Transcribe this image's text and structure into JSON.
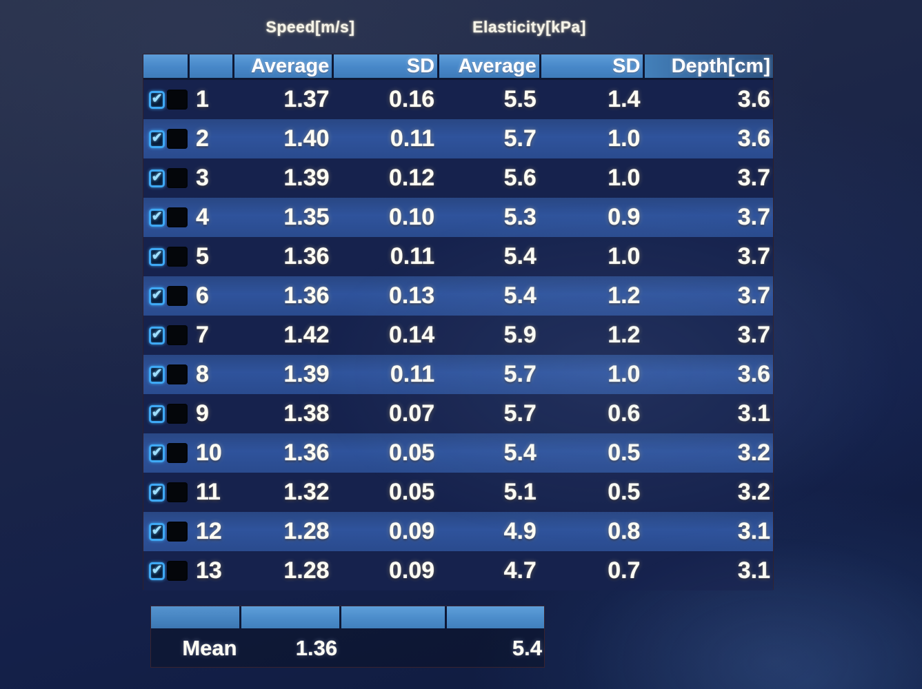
{
  "screen": {
    "group_headers": {
      "speed": "Speed[m/s]",
      "elasticity": "Elasticity[kPa]"
    }
  },
  "table": {
    "columns": [
      "",
      "",
      "Average",
      "SD",
      "Average",
      "SD",
      "Depth[cm]"
    ],
    "rows": [
      {
        "checked": true,
        "index": "1",
        "speed_avg": "1.37",
        "speed_sd": "0.16",
        "elast_avg": "5.5",
        "elast_sd": "1.4",
        "depth": "3.6"
      },
      {
        "checked": true,
        "index": "2",
        "speed_avg": "1.40",
        "speed_sd": "0.11",
        "elast_avg": "5.7",
        "elast_sd": "1.0",
        "depth": "3.6"
      },
      {
        "checked": true,
        "index": "3",
        "speed_avg": "1.39",
        "speed_sd": "0.12",
        "elast_avg": "5.6",
        "elast_sd": "1.0",
        "depth": "3.7"
      },
      {
        "checked": true,
        "index": "4",
        "speed_avg": "1.35",
        "speed_sd": "0.10",
        "elast_avg": "5.3",
        "elast_sd": "0.9",
        "depth": "3.7"
      },
      {
        "checked": true,
        "index": "5",
        "speed_avg": "1.36",
        "speed_sd": "0.11",
        "elast_avg": "5.4",
        "elast_sd": "1.0",
        "depth": "3.7"
      },
      {
        "checked": true,
        "index": "6",
        "speed_avg": "1.36",
        "speed_sd": "0.13",
        "elast_avg": "5.4",
        "elast_sd": "1.2",
        "depth": "3.7"
      },
      {
        "checked": true,
        "index": "7",
        "speed_avg": "1.42",
        "speed_sd": "0.14",
        "elast_avg": "5.9",
        "elast_sd": "1.2",
        "depth": "3.7"
      },
      {
        "checked": true,
        "index": "8",
        "speed_avg": "1.39",
        "speed_sd": "0.11",
        "elast_avg": "5.7",
        "elast_sd": "1.0",
        "depth": "3.6"
      },
      {
        "checked": true,
        "index": "9",
        "speed_avg": "1.38",
        "speed_sd": "0.07",
        "elast_avg": "5.7",
        "elast_sd": "0.6",
        "depth": "3.1"
      },
      {
        "checked": true,
        "index": "10",
        "speed_avg": "1.36",
        "speed_sd": "0.05",
        "elast_avg": "5.4",
        "elast_sd": "0.5",
        "depth": "3.2"
      },
      {
        "checked": true,
        "index": "11",
        "speed_avg": "1.32",
        "speed_sd": "0.05",
        "elast_avg": "5.1",
        "elast_sd": "0.5",
        "depth": "3.2"
      },
      {
        "checked": true,
        "index": "12",
        "speed_avg": "1.28",
        "speed_sd": "0.09",
        "elast_avg": "4.9",
        "elast_sd": "0.8",
        "depth": "3.1"
      },
      {
        "checked": true,
        "index": "13",
        "speed_avg": "1.28",
        "speed_sd": "0.09",
        "elast_avg": "4.7",
        "elast_sd": "0.7",
        "depth": "3.1"
      }
    ]
  },
  "mean": {
    "label": "Mean",
    "speed_mean": "1.36",
    "elasticity_mean": "5.4"
  },
  "icons": {
    "checkbox_glyph": "checkmark"
  },
  "colors": {
    "header_blue": "#4787c8",
    "row_dark": "#16224d",
    "row_light": "#2f539c",
    "checkbox_cyan": "#3fa9f5",
    "text": "#fdfcf4"
  }
}
